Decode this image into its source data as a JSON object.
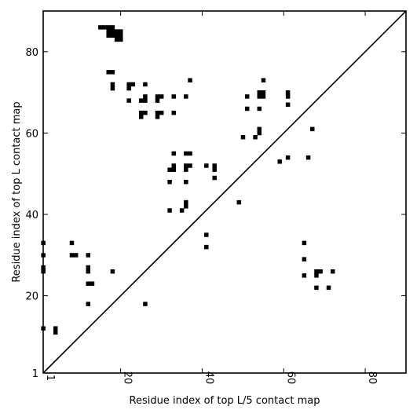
{
  "chart_data": {
    "type": "heatmap",
    "xlabel": "Residue index of top L/5 contact map",
    "ylabel": "Residue index of top L contact map",
    "xlim": [
      1,
      90
    ],
    "ylim": [
      1,
      90
    ],
    "xticks": [
      {
        "value": 1,
        "label": "1"
      },
      {
        "value": 20,
        "label": "20"
      },
      {
        "value": 40,
        "label": "40"
      },
      {
        "value": 60,
        "label": "60"
      },
      {
        "value": 80,
        "label": "80"
      }
    ],
    "yticks": [
      {
        "value": 1,
        "label": "1"
      },
      {
        "value": 20,
        "label": "20"
      },
      {
        "value": 40,
        "label": "40"
      },
      {
        "value": 60,
        "label": "60"
      },
      {
        "value": 80,
        "label": "80"
      }
    ],
    "diagonal": true,
    "contacts_top_L": [
      [
        15,
        86
      ],
      [
        16,
        86
      ],
      [
        17,
        86
      ],
      [
        18,
        86
      ],
      [
        17,
        85
      ],
      [
        18,
        85
      ],
      [
        19,
        85
      ],
      [
        20,
        85
      ],
      [
        17,
        84
      ],
      [
        18,
        84
      ],
      [
        19,
        84
      ],
      [
        20,
        84
      ],
      [
        19,
        83
      ],
      [
        20,
        83
      ],
      [
        17,
        75
      ],
      [
        18,
        75
      ],
      [
        18,
        72
      ],
      [
        18,
        71
      ],
      [
        22,
        72
      ],
      [
        23,
        72
      ],
      [
        22,
        71
      ],
      [
        26,
        72
      ],
      [
        22,
        68
      ],
      [
        25,
        68
      ],
      [
        26,
        68
      ],
      [
        26,
        69
      ],
      [
        25,
        65
      ],
      [
        26,
        65
      ],
      [
        25,
        64
      ],
      [
        29,
        69
      ],
      [
        30,
        69
      ],
      [
        29,
        68
      ],
      [
        29,
        65
      ],
      [
        30,
        65
      ],
      [
        29,
        64
      ],
      [
        33,
        69
      ],
      [
        33,
        65
      ],
      [
        36,
        69
      ],
      [
        37,
        73
      ],
      [
        33,
        55
      ],
      [
        36,
        55
      ],
      [
        37,
        55
      ],
      [
        33,
        52
      ],
      [
        36,
        52
      ],
      [
        37,
        52
      ],
      [
        32,
        51
      ],
      [
        33,
        51
      ],
      [
        36,
        51
      ],
      [
        32,
        48
      ],
      [
        36,
        48
      ],
      [
        36,
        43
      ],
      [
        36,
        42
      ],
      [
        32,
        41
      ],
      [
        35,
        41
      ],
      [
        41,
        52
      ],
      [
        43,
        52
      ],
      [
        43,
        51
      ],
      [
        43,
        49
      ],
      [
        51,
        69
      ],
      [
        51,
        66
      ],
      [
        54,
        70
      ],
      [
        55,
        70
      ],
      [
        54,
        69
      ],
      [
        55,
        69
      ],
      [
        55,
        73
      ],
      [
        54,
        66
      ],
      [
        54,
        61
      ],
      [
        54,
        60
      ],
      [
        53,
        59
      ],
      [
        50,
        59
      ],
      [
        49,
        43
      ],
      [
        61,
        70
      ],
      [
        61,
        69
      ],
      [
        61,
        67
      ],
      [
        67,
        61
      ],
      [
        41,
        35
      ],
      [
        41,
        32
      ],
      [
        1,
        33
      ],
      [
        1,
        30
      ],
      [
        1,
        27
      ],
      [
        1,
        26
      ],
      [
        1,
        12
      ],
      [
        4,
        12
      ],
      [
        4,
        11
      ],
      [
        8,
        33
      ],
      [
        8,
        30
      ],
      [
        9,
        30
      ],
      [
        12,
        30
      ],
      [
        12,
        27
      ],
      [
        12,
        26
      ],
      [
        12,
        23
      ],
      [
        13,
        23
      ],
      [
        12,
        18
      ],
      [
        18,
        26
      ],
      [
        26,
        18
      ]
    ],
    "contacts_top_L5": [
      [
        59,
        53
      ],
      [
        61,
        54
      ],
      [
        66,
        54
      ],
      [
        65,
        33
      ],
      [
        65,
        29
      ],
      [
        65,
        25
      ],
      [
        68,
        26
      ],
      [
        69,
        26
      ],
      [
        68,
        25
      ],
      [
        72,
        26
      ],
      [
        68,
        22
      ],
      [
        71,
        22
      ]
    ]
  }
}
